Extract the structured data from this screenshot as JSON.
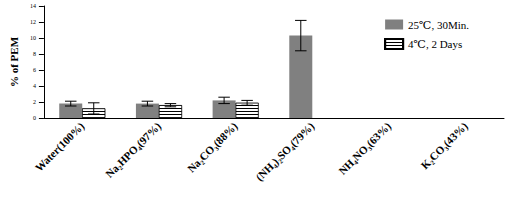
{
  "chart_data": {
    "type": "bar",
    "y_label": "% of PEM",
    "categories": [
      "Water(100%)",
      "Na₂HPO₄(97%)",
      "Na₂CO₃(88%)",
      "(NH₄)₂SO₄(79%)",
      "NH₄NO₃(63%)",
      "K₂CO₃(43%)"
    ],
    "series": [
      {
        "name": "25℃, 30Min.",
        "color": "#808080",
        "values": [
          1.8,
          1.8,
          2.2,
          10.3,
          null,
          null
        ],
        "errors": [
          0.3,
          0.3,
          0.4,
          1.9,
          null,
          null
        ]
      },
      {
        "name": "4℃, 2 Days",
        "color": "#ffffff",
        "marker": "hatch",
        "values": [
          1.2,
          1.6,
          1.9,
          null,
          null,
          null
        ],
        "errors": [
          0.7,
          0.2,
          0.3,
          null,
          null,
          null
        ]
      }
    ],
    "ylim": [
      0,
      14
    ],
    "yticks": [
      0,
      2,
      4,
      6,
      8,
      10,
      12,
      14
    ],
    "grid": false,
    "legend": "top-right"
  }
}
